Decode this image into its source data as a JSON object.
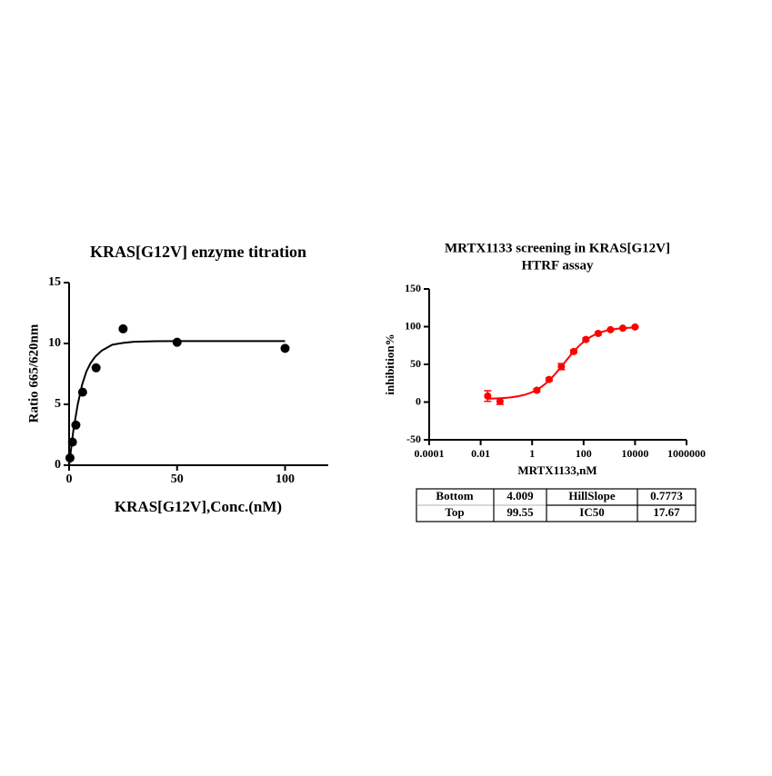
{
  "chart_data": [
    {
      "type": "scatter",
      "title": "KRAS[G12V] enzyme titration",
      "xlabel": "KRAS[G12V],Conc.(nM)",
      "ylabel": "Ratio 665/620nm",
      "color": "#000000",
      "x": [
        0.4,
        1.56,
        3.125,
        6.25,
        12.5,
        25,
        50,
        100
      ],
      "values": [
        0.6,
        1.9,
        3.3,
        6.0,
        8.0,
        11.2,
        10.1,
        9.6
      ],
      "fit": {
        "x": [
          0,
          2,
          4,
          6,
          8,
          10,
          12,
          15,
          20,
          25,
          30,
          40,
          50,
          70,
          100
        ],
        "values": [
          0,
          2.9,
          5.0,
          6.6,
          7.7,
          8.4,
          8.9,
          9.4,
          9.9,
          10.05,
          10.14,
          10.19,
          10.2,
          10.2,
          10.2
        ]
      },
      "xlim": [
        0,
        120
      ],
      "xticks": [
        0,
        50,
        100
      ],
      "ylim": [
        0,
        15
      ],
      "yticks": [
        0,
        5,
        10,
        15
      ]
    },
    {
      "type": "dose-response",
      "title": [
        "MRTX1133 screening in KRAS[G12V]",
        "HTRF assay"
      ],
      "xlabel": "MRTX1133,nM",
      "ylabel": "inhibition%",
      "color": "#ff0000",
      "log_x": true,
      "x": [
        0.0188,
        0.0565,
        1.52,
        4.57,
        13.7,
        41.2,
        123,
        370,
        1111,
        3333,
        10000
      ],
      "values": [
        8,
        1,
        15.6,
        30,
        47,
        67,
        83,
        91,
        96,
        98,
        99.6
      ],
      "errors": [
        7,
        4,
        2,
        2,
        4,
        2,
        2,
        2,
        1,
        1,
        1
      ],
      "xlim": [
        0.0001,
        1000000
      ],
      "xticks": [
        0.0001,
        0.01,
        1,
        100,
        10000,
        1000000
      ],
      "ylim": [
        -50,
        150
      ],
      "yticks": [
        -50,
        0,
        50,
        100,
        150
      ]
    }
  ],
  "table": {
    "rows": [
      [
        "Bottom",
        "4.009",
        "HillSlope",
        "0.7773"
      ],
      [
        "Top",
        "99.55",
        "IC50",
        "17.67"
      ]
    ]
  }
}
